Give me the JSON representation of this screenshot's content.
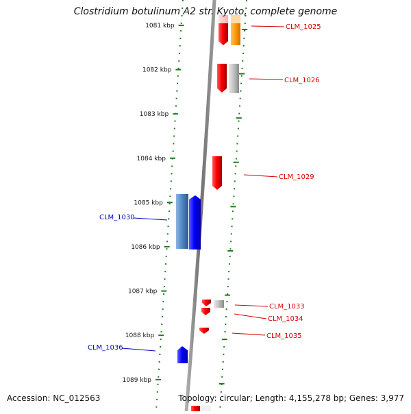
{
  "title": "Clostridium botulinum A2 str. Kyoto, complete genome",
  "footer": {
    "accession": "Accession: NC_012563",
    "topology": "Topology: circular; Length: 4,155,278 bp; Genes: 3,977"
  },
  "ticks": [
    "1081 kbp",
    "1082 kbp",
    "1083 kbp",
    "1084 kbp",
    "1085 kbp",
    "1086 kbp",
    "1087 kbp",
    "1088 kbp",
    "1089 kbp"
  ],
  "genes": [
    {
      "label": "CLM_1025",
      "strand": "forward",
      "color": "#d40000"
    },
    {
      "label": "CLM_1026",
      "strand": "forward",
      "color": "#d40000"
    },
    {
      "label": "CLM_1029",
      "strand": "forward",
      "color": "#d40000"
    },
    {
      "label": "CLM_1030",
      "strand": "reverse",
      "color": "#0000b8"
    },
    {
      "label": "CLM_1033",
      "strand": "forward",
      "color": "#d40000"
    },
    {
      "label": "CLM_1034",
      "strand": "forward",
      "color": "#d40000"
    },
    {
      "label": "CLM_1035",
      "strand": "forward",
      "color": "#d40000"
    },
    {
      "label": "CLM_1036",
      "strand": "reverse",
      "color": "#0000b8"
    }
  ],
  "colors": {
    "forward_gene": "#ff0000",
    "reverse_gene": "#0000ff",
    "forward_label": "#d40000",
    "reverse_label": "#0000b8",
    "backbone": "#808080",
    "tick": "#1f7a1f",
    "orange_feature": "#ff9900",
    "grey_feature": "#b8b8b8",
    "light_blue_feature": "#4f86c0"
  }
}
